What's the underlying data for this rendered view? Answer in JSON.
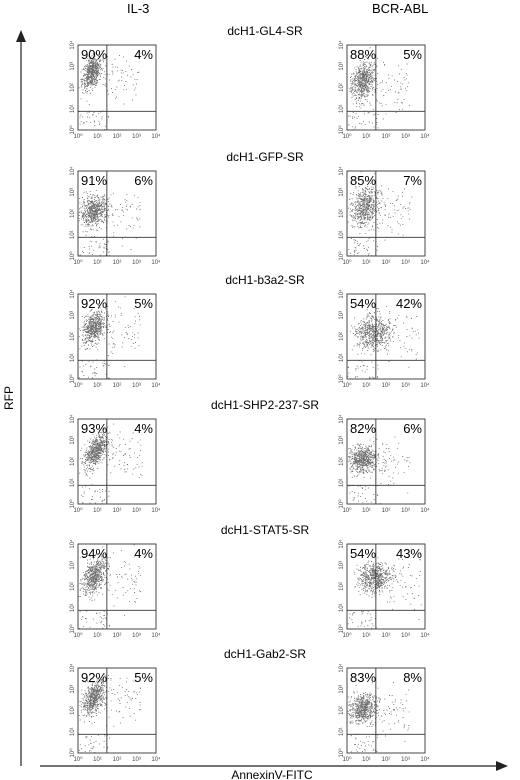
{
  "headers": {
    "left": "IL-3",
    "right": "BCR-ABL"
  },
  "axes": {
    "y_label": "RFP",
    "x_label": "AnnexinV-FITC"
  },
  "tick_labels": {
    "x": [
      "10⁰",
      "10¹",
      "10²",
      "10³",
      "10⁴"
    ],
    "y": [
      "10⁰",
      "10¹",
      "10²",
      "10³",
      "10⁴"
    ]
  },
  "chart_data": {
    "type": "scatter",
    "description_type": "flow-cytometry quadrant dot plots",
    "x_axis": "AnnexinV-FITC",
    "y_axis": "RFP",
    "x_scale": "log",
    "y_scale": "log",
    "xlim": [
      1,
      10000
    ],
    "ylim": [
      1,
      10000
    ],
    "columns": [
      "IL-3",
      "BCR-ABL"
    ],
    "rows": [
      {
        "construct": "dcH1-GL4-SR",
        "panels": [
          {
            "condition": "IL-3",
            "upper_left": "90%",
            "upper_right": "4%",
            "cluster": {
              "x": 0.7,
              "y": 2.7,
              "sx": 0.25,
              "sy": 0.35,
              "tilt": 0.6
            }
          },
          {
            "condition": "BCR-ABL",
            "upper_left": "88%",
            "upper_right": "5%",
            "cluster": {
              "x": 0.8,
              "y": 2.3,
              "sx": 0.3,
              "sy": 0.45,
              "tilt": 0.3
            }
          }
        ]
      },
      {
        "construct": "dcH1-GFP-SR",
        "panels": [
          {
            "condition": "IL-3",
            "upper_left": "91%",
            "upper_right": "6%",
            "cluster": {
              "x": 0.8,
              "y": 2.1,
              "sx": 0.35,
              "sy": 0.35,
              "tilt": 0.2
            }
          },
          {
            "condition": "BCR-ABL",
            "upper_left": "85%",
            "upper_right": "7%",
            "cluster": {
              "x": 0.9,
              "y": 2.3,
              "sx": 0.35,
              "sy": 0.45,
              "tilt": 0.2
            }
          }
        ]
      },
      {
        "construct": "dcH1-b3a2-SR",
        "panels": [
          {
            "condition": "IL-3",
            "upper_left": "92%",
            "upper_right": "5%",
            "cluster": {
              "x": 0.8,
              "y": 2.4,
              "sx": 0.3,
              "sy": 0.35,
              "tilt": 0.4
            }
          },
          {
            "condition": "BCR-ABL",
            "upper_left": "54%",
            "upper_right": "42%",
            "cluster": {
              "x": 1.3,
              "y": 2.2,
              "sx": 0.45,
              "sy": 0.4,
              "tilt": 0.0
            }
          }
        ]
      },
      {
        "construct": "dcH1-SHP2-237-SR",
        "panels": [
          {
            "condition": "IL-3",
            "upper_left": "93%",
            "upper_right": "4%",
            "cluster": {
              "x": 0.9,
              "y": 2.5,
              "sx": 0.3,
              "sy": 0.35,
              "tilt": 0.7
            }
          },
          {
            "condition": "BCR-ABL",
            "upper_left": "82%",
            "upper_right": "6%",
            "cluster": {
              "x": 0.8,
              "y": 2.1,
              "sx": 0.35,
              "sy": 0.3,
              "tilt": 0.1
            }
          }
        ]
      },
      {
        "construct": "dcH1-STAT5-SR",
        "panels": [
          {
            "condition": "IL-3",
            "upper_left": "94%",
            "upper_right": "4%",
            "cluster": {
              "x": 0.8,
              "y": 2.5,
              "sx": 0.3,
              "sy": 0.4,
              "tilt": 0.6
            }
          },
          {
            "condition": "BCR-ABL",
            "upper_left": "54%",
            "upper_right": "43%",
            "cluster": {
              "x": 1.4,
              "y": 2.4,
              "sx": 0.4,
              "sy": 0.35,
              "tilt": 0.1
            }
          }
        ]
      },
      {
        "construct": "dcH1-Gab2-SR",
        "panels": [
          {
            "condition": "IL-3",
            "upper_left": "92%",
            "upper_right": "5%",
            "cluster": {
              "x": 0.8,
              "y": 2.6,
              "sx": 0.3,
              "sy": 0.35,
              "tilt": 0.6
            }
          },
          {
            "condition": "BCR-ABL",
            "upper_left": "83%",
            "upper_right": "8%",
            "cluster": {
              "x": 0.8,
              "y": 2.1,
              "sx": 0.35,
              "sy": 0.35,
              "tilt": 0.1
            }
          }
        ]
      }
    ]
  }
}
